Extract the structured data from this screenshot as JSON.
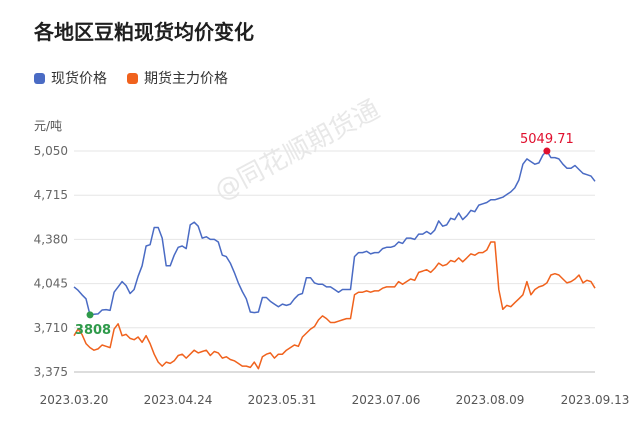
{
  "title": "各地区豆粕现货均价变化",
  "unit": "元/吨",
  "watermark": "@同花顺期货通",
  "colors": {
    "spot": "#4a6bc4",
    "futures": "#f0621d",
    "max": "#e0102e",
    "min": "#2e9a4a",
    "grid": "#e6e6e6"
  },
  "chart_data": {
    "type": "line",
    "title": "各地区豆粕现货均价变化",
    "ylabel": "元/吨",
    "ylim": [
      3375,
      5050
    ],
    "yticks": [
      "3,375",
      "3,710",
      "4,045",
      "4,380",
      "4,715",
      "5,050"
    ],
    "xticks": [
      "2023.03.20",
      "2023.04.24",
      "2023.05.31",
      "2023.07.06",
      "2023.08.09",
      "2023.09.13"
    ],
    "legend_position": "top-left",
    "grid": true,
    "annotations": {
      "max_label": "5049.71",
      "min_label": "3808"
    },
    "series": [
      {
        "name": "现货价格",
        "values": [
          4020,
          3995,
          3960,
          3930,
          3808,
          3812,
          3815,
          3845,
          3848,
          3842,
          3980,
          4020,
          4060,
          4030,
          3970,
          4000,
          4100,
          4180,
          4330,
          4340,
          4470,
          4470,
          4390,
          4180,
          4180,
          4260,
          4320,
          4330,
          4310,
          4490,
          4510,
          4480,
          4390,
          4400,
          4380,
          4380,
          4360,
          4260,
          4250,
          4200,
          4130,
          4050,
          3985,
          3930,
          3830,
          3825,
          3830,
          3940,
          3940,
          3910,
          3890,
          3870,
          3890,
          3880,
          3890,
          3930,
          3960,
          3970,
          4090,
          4090,
          4050,
          4040,
          4040,
          4020,
          4020,
          4000,
          3980,
          4000,
          4000,
          4000,
          4250,
          4280,
          4280,
          4290,
          4270,
          4280,
          4280,
          4310,
          4320,
          4320,
          4330,
          4360,
          4350,
          4390,
          4390,
          4380,
          4420,
          4420,
          4440,
          4420,
          4450,
          4520,
          4480,
          4490,
          4540,
          4530,
          4580,
          4530,
          4560,
          4600,
          4590,
          4640,
          4650,
          4660,
          4680,
          4680,
          4690,
          4700,
          4720,
          4740,
          4770,
          4830,
          4950,
          4990,
          4970,
          4950,
          4960,
          5020,
          5049.71,
          5000,
          5000,
          4990,
          4950,
          4920,
          4920,
          4940,
          4910,
          4880,
          4870,
          4860,
          4820
        ]
      },
      {
        "name": "期货主力价格",
        "values": [
          3650,
          3700,
          3660,
          3590,
          3560,
          3540,
          3550,
          3580,
          3570,
          3560,
          3700,
          3740,
          3650,
          3660,
          3630,
          3620,
          3640,
          3600,
          3650,
          3590,
          3510,
          3450,
          3420,
          3450,
          3440,
          3460,
          3500,
          3510,
          3480,
          3510,
          3540,
          3520,
          3530,
          3540,
          3500,
          3530,
          3520,
          3480,
          3490,
          3470,
          3460,
          3440,
          3420,
          3420,
          3410,
          3450,
          3400,
          3490,
          3510,
          3520,
          3480,
          3510,
          3510,
          3540,
          3560,
          3580,
          3570,
          3640,
          3670,
          3700,
          3720,
          3770,
          3800,
          3780,
          3750,
          3750,
          3760,
          3770,
          3780,
          3780,
          3960,
          3980,
          3980,
          3990,
          3980,
          3990,
          3990,
          4010,
          4020,
          4020,
          4020,
          4060,
          4040,
          4060,
          4080,
          4070,
          4130,
          4140,
          4150,
          4130,
          4160,
          4200,
          4180,
          4190,
          4220,
          4210,
          4240,
          4210,
          4240,
          4270,
          4260,
          4280,
          4280,
          4300,
          4360,
          4360,
          4000,
          3850,
          3880,
          3870,
          3900,
          3930,
          3960,
          4060,
          3960,
          4000,
          4020,
          4030,
          4050,
          4110,
          4120,
          4110,
          4080,
          4050,
          4060,
          4080,
          4110,
          4050,
          4070,
          4060,
          4010
        ]
      }
    ]
  }
}
